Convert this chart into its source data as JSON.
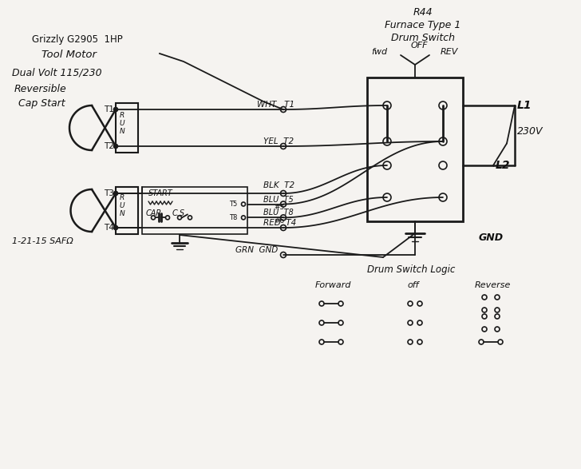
{
  "bg_color": "#f5f3f0",
  "line_color": "#1a1a1a",
  "top_left": [
    "Grizzly G2905  1HP",
    "Tool Motor",
    "Dual Volt 115/230",
    "Reversible",
    "Cap Start"
  ],
  "bottom_left": "1-21-15 SAFΩ",
  "drum_title": [
    "R44",
    "Furnace Type 1",
    "Drum Switch"
  ],
  "fwd_label": "fwd",
  "off_label": "OFF",
  "rev_label": "REV",
  "L1": "L1",
  "L2": "L2",
  "V230": "230V",
  "GND": "GND",
  "logic_title": "Drum Switch Logic",
  "forward": "Forward",
  "off2": "off",
  "reverse": "Reverse"
}
